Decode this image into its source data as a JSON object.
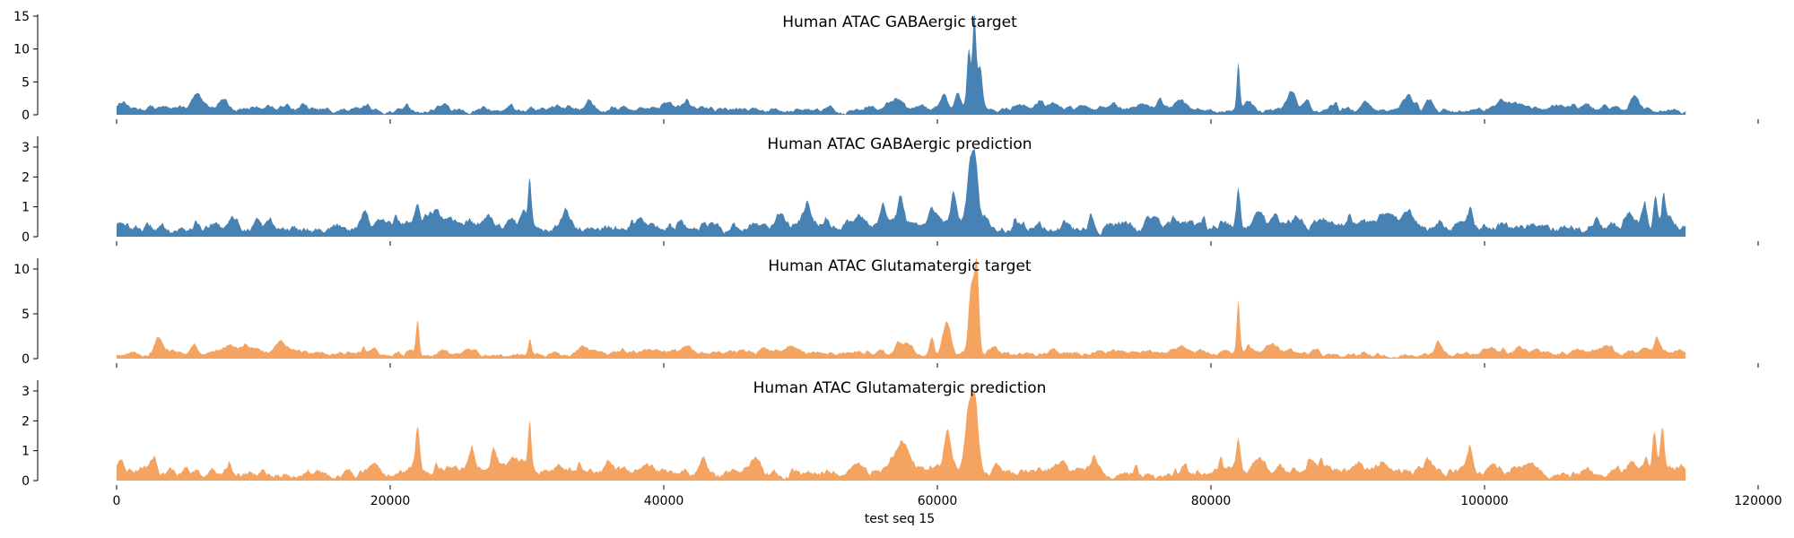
{
  "colors": {
    "gaba": "#4682b4",
    "glut": "#f4a460"
  },
  "chart_data": {
    "type": "area",
    "xlabel": "test seq 15",
    "xlim": [
      0,
      120000
    ],
    "xticks": [
      0,
      20000,
      40000,
      60000,
      80000,
      100000,
      120000
    ],
    "x_end": 114700,
    "grid": false,
    "panels": [
      {
        "title": "Human ATAC GABAergic target",
        "ylim": [
          0,
          15
        ],
        "yticks": [
          0,
          5,
          10,
          15
        ],
        "color": "gaba",
        "series": {
          "base": 0.8,
          "var": 0.45,
          "bumps": 1.1,
          "peaks": [
            [
              34500,
              1.4,
              300
            ],
            [
              57000,
              1.5,
              400
            ],
            [
              60500,
              2.5,
              300
            ],
            [
              61500,
              2.2,
              300
            ],
            [
              62300,
              9.0,
              200
            ],
            [
              62700,
              14.0,
              180
            ],
            [
              63100,
              6.0,
              250
            ],
            [
              82000,
              7.0,
              160
            ],
            [
              82700,
              1.6,
              500
            ],
            [
              86000,
              1.8,
              300
            ],
            [
              94500,
              1.4,
              300
            ]
          ]
        }
      },
      {
        "title": "Human ATAC GABAergic prediction",
        "ylim": [
          0,
          3.3
        ],
        "yticks": [
          0,
          1,
          2,
          3
        ],
        "color": "gaba",
        "series": {
          "base": 0.35,
          "var": 0.18,
          "bumps": 0.35,
          "peaks": [
            [
              22000,
              0.8,
              250
            ],
            [
              30200,
              1.4,
              160
            ],
            [
              32800,
              0.5,
              300
            ],
            [
              56000,
              0.7,
              300
            ],
            [
              57300,
              0.8,
              300
            ],
            [
              61200,
              1.0,
              300
            ],
            [
              62400,
              2.0,
              350
            ],
            [
              62800,
              1.8,
              280
            ],
            [
              82000,
              1.2,
              200
            ],
            [
              83500,
              0.5,
              500
            ],
            [
              99000,
              0.6,
              250
            ],
            [
              110500,
              0.6,
              400
            ],
            [
              111700,
              0.7,
              250
            ],
            [
              112500,
              1.2,
              200
            ],
            [
              113100,
              1.1,
              200
            ]
          ]
        }
      },
      {
        "title": "Human ATAC Glutamatergic target",
        "ylim": [
          0,
          11
        ],
        "yticks": [
          0,
          5,
          10
        ],
        "color": "glut",
        "series": {
          "base": 0.6,
          "var": 0.3,
          "bumps": 0.7,
          "peaks": [
            [
              22000,
              3.8,
              170
            ],
            [
              30200,
              1.8,
              160
            ],
            [
              57500,
              1.2,
              600
            ],
            [
              59600,
              2.2,
              250
            ],
            [
              60700,
              3.8,
              400
            ],
            [
              62500,
              8.0,
              300
            ],
            [
              62900,
              9.5,
              220
            ],
            [
              82000,
              5.8,
              160
            ],
            [
              84500,
              1.3,
              600
            ]
          ]
        }
      },
      {
        "title": "Human ATAC Glutamatergic prediction",
        "ylim": [
          0,
          3.3
        ],
        "yticks": [
          0,
          1,
          2,
          3
        ],
        "color": "glut",
        "series": {
          "base": 0.3,
          "var": 0.16,
          "bumps": 0.32,
          "peaks": [
            [
              22000,
              1.4,
              220
            ],
            [
              26000,
              0.4,
              200
            ],
            [
              27500,
              0.4,
              200
            ],
            [
              30200,
              1.6,
              160
            ],
            [
              57300,
              0.9,
              500
            ],
            [
              60700,
              1.2,
              350
            ],
            [
              62300,
              2.2,
              400
            ],
            [
              62800,
              2.0,
              300
            ],
            [
              82000,
              1.1,
              220
            ],
            [
              83500,
              0.5,
              600
            ],
            [
              99000,
              0.5,
              300
            ],
            [
              110700,
              0.4,
              400
            ],
            [
              111800,
              0.5,
              250
            ],
            [
              112400,
              1.3,
              200
            ],
            [
              113000,
              1.2,
              200
            ]
          ]
        }
      }
    ]
  }
}
